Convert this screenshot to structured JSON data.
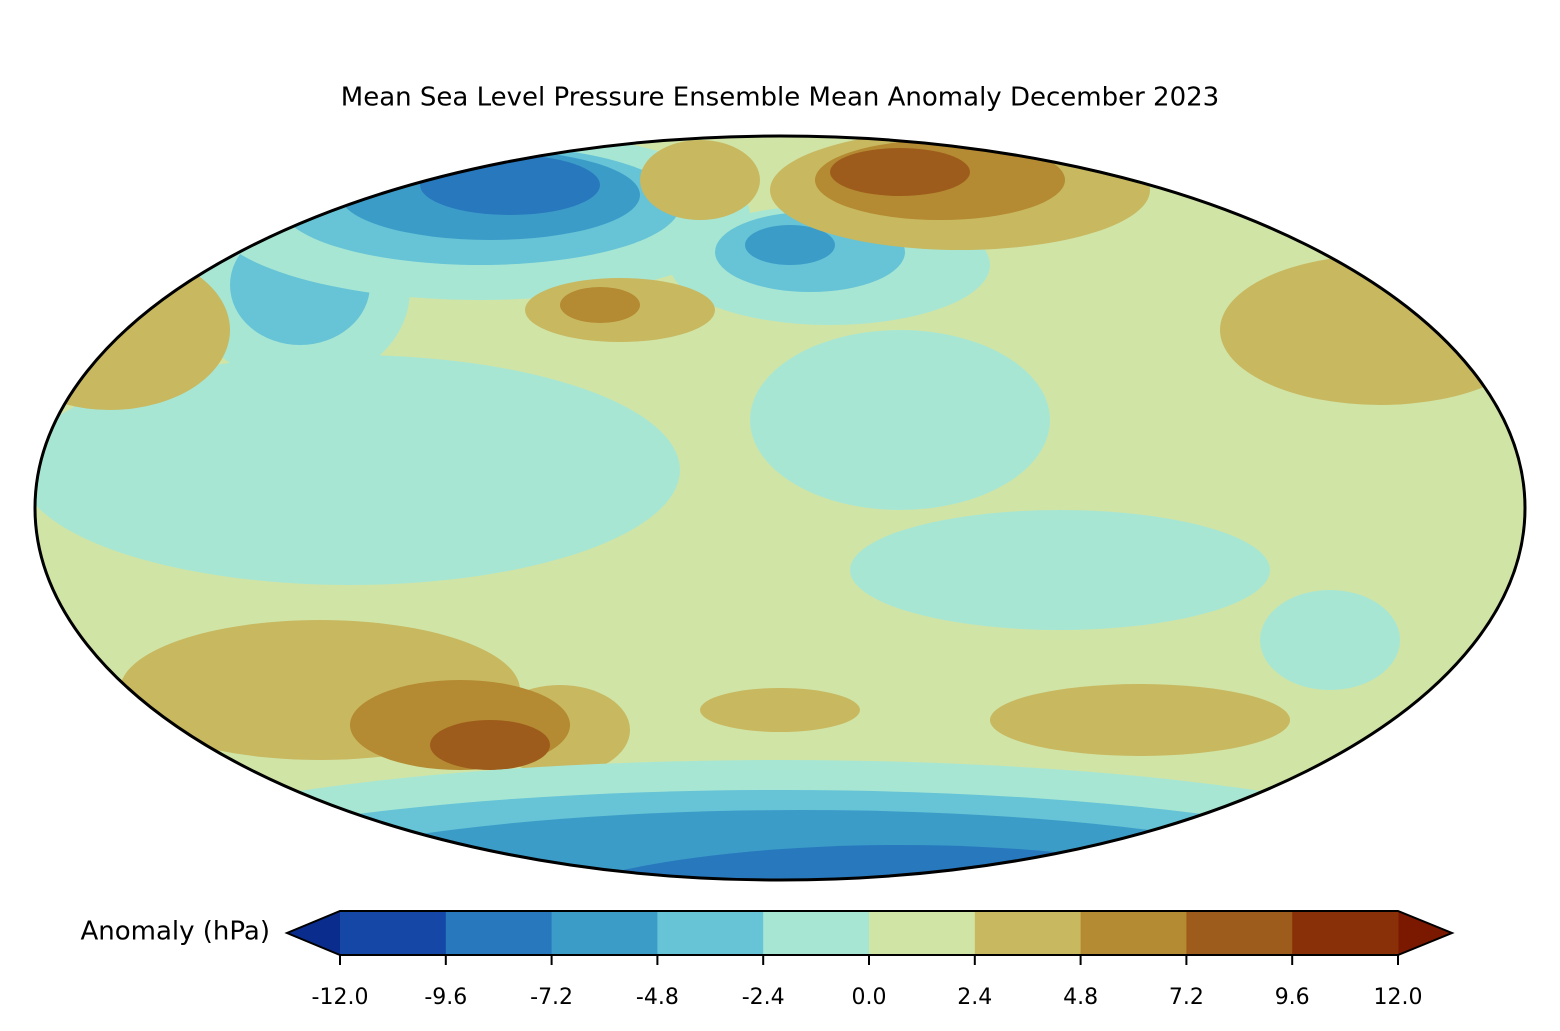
{
  "title": "Mean Sea Level Pressure Ensemble Mean Anomaly December 2023",
  "colorbar": {
    "label": "Anomaly (hPa)",
    "ticks": [
      {
        "value": -12,
        "label": "-12.0"
      },
      -9.6,
      -7.2,
      -4.8,
      -2.4,
      {
        "value": 0,
        "label": "0.0"
      },
      2.4,
      4.8,
      7.2,
      9.6,
      {
        "value": 12,
        "label": "12.0"
      }
    ],
    "colors": [
      "#1447a6",
      "#2878bd",
      "#3c9cc8",
      "#66c4d6",
      "#a8e6d4",
      "#d0e4a6",
      "#c8b860",
      "#b48a32",
      "#9e5c1c",
      "#8a3008"
    ],
    "extend_colors": [
      "#0a2c8c",
      "#7a1800"
    ]
  }
}
